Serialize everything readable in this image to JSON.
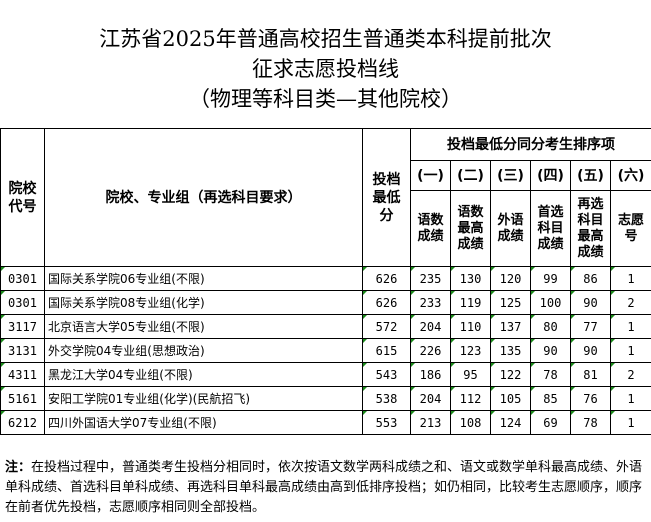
{
  "title": {
    "line1": "江苏省2025年普通高校招生普通类本科提前批次",
    "line2": "征求志愿投档线",
    "line3": "（物理等科目类—其他院校）"
  },
  "headers": {
    "code": "院校代号",
    "name": "院校、专业组（再选科目要求）",
    "min_score": "投档最低分",
    "rank_group": "投档最低分同分考生排序项",
    "rank_items": [
      {
        "num": "(一)",
        "label": "语数成绩"
      },
      {
        "num": "(二)",
        "label": "语数最高成绩"
      },
      {
        "num": "(三)",
        "label": "外语成绩"
      },
      {
        "num": "(四)",
        "label": "首选科目成绩"
      },
      {
        "num": "(五)",
        "label": "再选科目最高成绩"
      },
      {
        "num": "(六)",
        "label": "志愿号"
      }
    ]
  },
  "rows": [
    [
      "0301",
      "国际关系学院06专业组(不限)",
      "626",
      "235",
      "130",
      "120",
      "99",
      "86",
      "1"
    ],
    [
      "0301",
      "国际关系学院08专业组(化学)",
      "626",
      "233",
      "119",
      "125",
      "100",
      "90",
      "2"
    ],
    [
      "3117",
      "北京语言大学05专业组(不限)",
      "572",
      "204",
      "110",
      "137",
      "80",
      "77",
      "1"
    ],
    [
      "3131",
      "外交学院04专业组(思想政治)",
      "615",
      "226",
      "123",
      "135",
      "90",
      "90",
      "1"
    ],
    [
      "4311",
      "黑龙江大学04专业组(不限)",
      "543",
      "186",
      "95",
      "122",
      "78",
      "81",
      "2"
    ],
    [
      "5161",
      "安阳工学院01专业组(化学)(民航招飞)",
      "538",
      "204",
      "112",
      "105",
      "85",
      "76",
      "1"
    ],
    [
      "6212",
      "四川外国语大学07专业组(不限)",
      "553",
      "213",
      "108",
      "124",
      "69",
      "78",
      "1"
    ]
  ],
  "note": {
    "label": "注：",
    "text": "在投档过程中，普通类考生投档分相同时，依次按语文数学两科成绩之和、语文或数学单科最高成绩、外语单科成绩、首选科目单科成绩、再选科目单科最高成绩由高到低排序投档；如仍相同，比较考生志愿顺序，顺序在前者优先投档，志愿顺序相同则全部投档。"
  }
}
